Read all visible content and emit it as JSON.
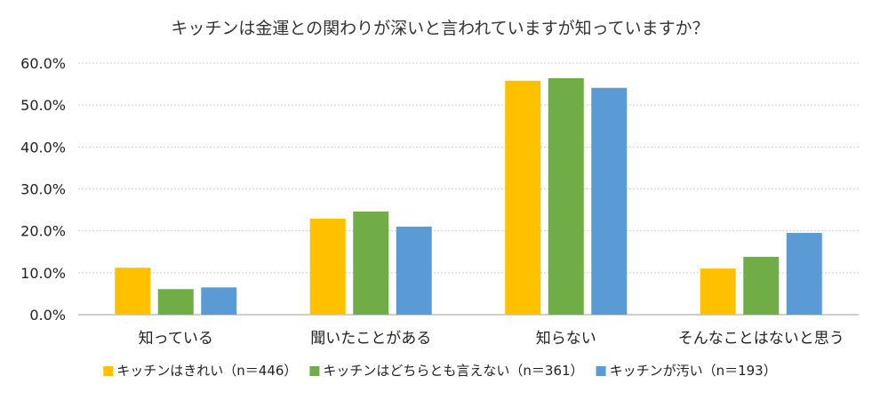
{
  "chart_data": {
    "type": "bar",
    "title": "キッチンは金運との関わりが深いと言われていますが知っていますか？",
    "xlabel": "",
    "ylabel": "",
    "categories": [
      "知っている",
      "聞いたことがある",
      "知らない",
      "そんなことはないと思う"
    ],
    "series": [
      {
        "name": "キッチンはきれい（n＝446）",
        "color": "#FFC000",
        "values": [
          11.2,
          22.9,
          55.8,
          11.0
        ]
      },
      {
        "name": "キッチンはどちらとも言えない（n＝361）",
        "color": "#70AD47",
        "values": [
          6.1,
          24.6,
          56.4,
          13.8
        ]
      },
      {
        "name": "キッチンが汚い（n＝193）",
        "color": "#5B9BD5",
        "values": [
          6.5,
          21.0,
          54.1,
          19.5
        ]
      }
    ],
    "ylim": [
      0,
      60
    ],
    "yticks": [
      "0.0%",
      "10.0%",
      "20.0%",
      "30.0%",
      "40.0%",
      "50.0%",
      "60.0%"
    ],
    "grid": true,
    "legend_position": "bottom"
  }
}
